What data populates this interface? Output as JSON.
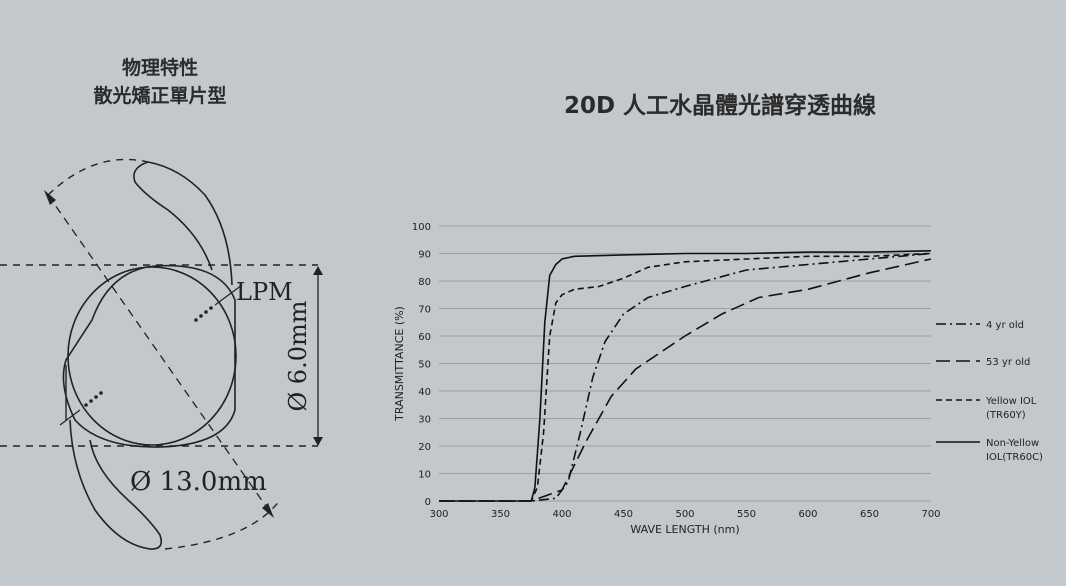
{
  "left_panel": {
    "title_line1": "物理特性",
    "title_line2": "散光矯正單片型",
    "label_lpm": "LPM",
    "label_optic": "Ø 6.0mm",
    "label_overall": "Ø 13.0mm"
  },
  "chart_title": "20D 人工水晶體光譜穿透曲線",
  "chart_data": {
    "type": "line",
    "xlabel": "WAVE LENGTH (nm)",
    "ylabel": "TRANSMITTANCE (%)",
    "xlim": [
      300,
      700
    ],
    "ylim": [
      0,
      100
    ],
    "xticks": [
      "300",
      "350",
      "400",
      "450",
      "500",
      "550",
      "600",
      "650",
      "700"
    ],
    "yticks": [
      "0",
      "10",
      "20",
      "30",
      "40",
      "50",
      "60",
      "70",
      "80",
      "90",
      "100"
    ],
    "grid": "horizontal",
    "legend_position": "right",
    "series": [
      {
        "name": "4 yr old",
        "style": "dash-dot",
        "x": [
          300,
          375,
          395,
          405,
          415,
          425,
          435,
          450,
          470,
          500,
          550,
          600,
          650,
          700
        ],
        "y": [
          0,
          0,
          1,
          7,
          25,
          45,
          58,
          68,
          74,
          78,
          84,
          86,
          88,
          90
        ]
      },
      {
        "name": "53 yr old",
        "style": "long-dash",
        "x": [
          300,
          375,
          400,
          410,
          420,
          430,
          440,
          460,
          480,
          500,
          530,
          560,
          600,
          650,
          700
        ],
        "y": [
          0,
          0,
          4,
          13,
          22,
          30,
          38,
          48,
          54,
          60,
          68,
          74,
          77,
          83,
          88
        ]
      },
      {
        "name": "Yellow IOL (TR60Y)",
        "style": "short-dash",
        "x": [
          300,
          375,
          380,
          385,
          390,
          395,
          400,
          410,
          430,
          450,
          470,
          500,
          550,
          600,
          650,
          700
        ],
        "y": [
          0,
          0,
          5,
          25,
          60,
          72,
          75,
          77,
          78,
          81,
          85,
          87,
          88,
          89,
          89,
          90
        ]
      },
      {
        "name": "Non-Yellow IOL(TR60C)",
        "style": "solid",
        "x": [
          300,
          375,
          378,
          382,
          386,
          390,
          395,
          400,
          410,
          450,
          500,
          550,
          600,
          650,
          700
        ],
        "y": [
          0,
          0,
          5,
          30,
          65,
          82,
          86,
          88,
          89,
          89.5,
          90,
          90,
          90.5,
          90.5,
          91
        ]
      }
    ],
    "legend": [
      {
        "text_lines": [
          "4 yr old"
        ],
        "style": "dash-dot"
      },
      {
        "text_lines": [
          "53 yr old"
        ],
        "style": "long-dash"
      },
      {
        "text_lines": [
          "Yellow IOL",
          "(TR60Y)"
        ],
        "style": "short-dash"
      },
      {
        "text_lines": [
          "Non-Yellow",
          "IOL(TR60C)"
        ],
        "style": "solid"
      }
    ]
  }
}
